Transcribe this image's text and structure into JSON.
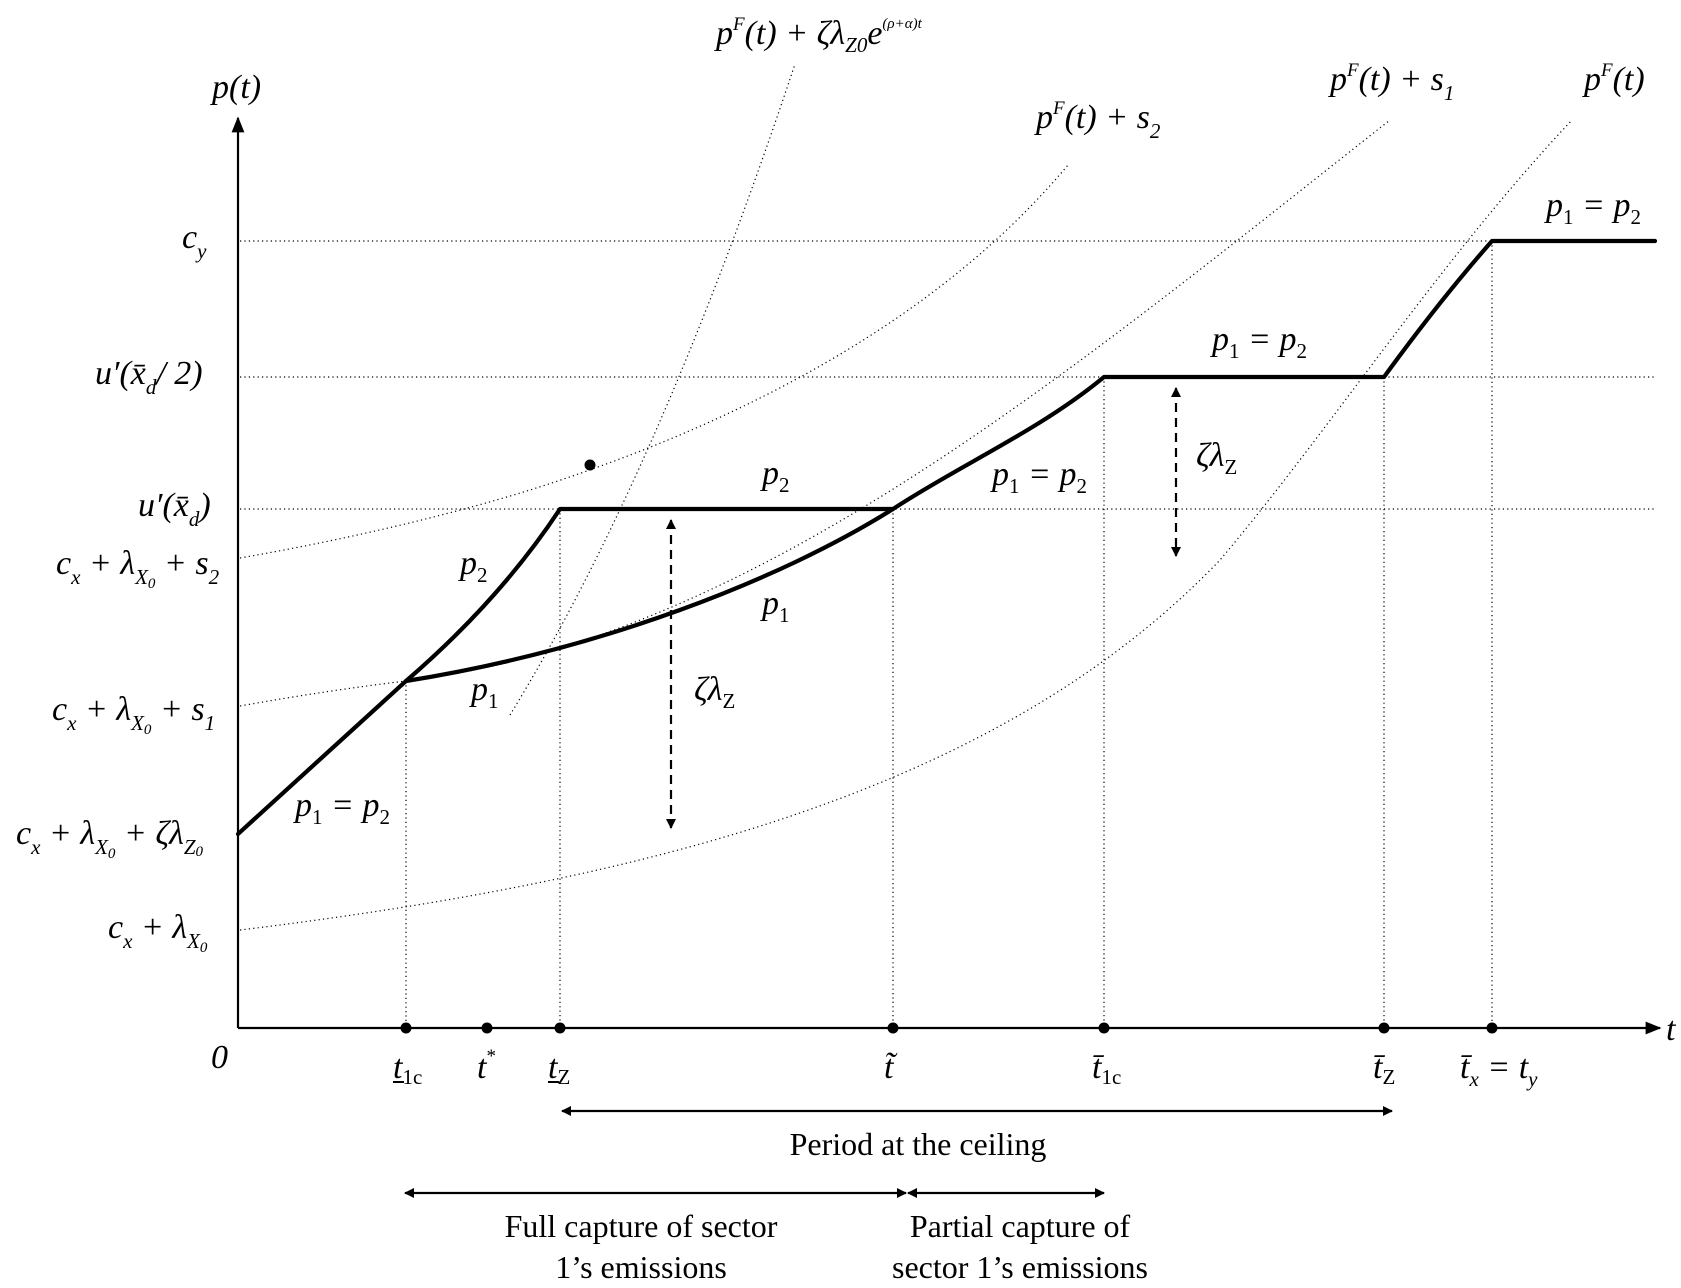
{
  "axes": {
    "y_label": "p(t)",
    "x_label": "t",
    "origin": "0"
  },
  "y_labels": {
    "cy": "c",
    "cy_sub": "y",
    "u_half": "u′(x̄",
    "u_half_sub": "d",
    "u_half_end": "/ 2)",
    "u_full": "u′(x̄",
    "u_full_sub": "d",
    "u_full_end": ")",
    "s2_line": "c",
    "s2_line_sub": "x",
    "s2_line_b": " + λ",
    "s2_line_bsub": "X",
    "s2_line_bsub2": "0",
    "s2_line_c": " + s",
    "s2_line_csub": "2",
    "s1_line": "c",
    "s1_line_sub": "x",
    "s1_line_b": " + λ",
    "s1_line_bsub": "X",
    "s1_line_bsub2": "0",
    "s1_line_c": " + s",
    "s1_line_csub": "1",
    "z_line": "c",
    "z_line_sub": "x",
    "z_line_b": " + λ",
    "z_line_bsub": "X",
    "z_line_bsub2": "0",
    "z_line_c": " + ζλ",
    "z_line_csub": "Z",
    "z_line_csub2": "0",
    "f_line": "c",
    "f_line_sub": "x",
    "f_line_b": " + λ",
    "f_line_bsub": "X",
    "f_line_bsub2": "0"
  },
  "curve_labels": {
    "pF_zeta": "p",
    "pF_zeta_sup": "F",
    "pF_zeta_mid": "(t) + ζλ",
    "pF_zeta_sub": "Z0",
    "pF_zeta_e": "e",
    "pF_zeta_exp": "(ρ+α)t",
    "pF_s2": "p",
    "pF_s2_sup": "F",
    "pF_s2_mid": "(t) + s",
    "pF_s2_sub": "2",
    "pF_s1": "p",
    "pF_s1_sup": "F",
    "pF_s1_mid": "(t) + s",
    "pF_s1_sub": "1",
    "pF": "p",
    "pF_sup": "F",
    "pF_mid": "(t)"
  },
  "path_labels": {
    "p": "p",
    "eq": " = p",
    "one": "1",
    "two": "2",
    "zeta": "ζλ",
    "z": "Z"
  },
  "x_ticks": {
    "t1c_low": "t",
    "t1c_low_sub": "1c",
    "t_star": "t",
    "t_star_sup": "*",
    "tZ_low": "t",
    "tZ_low_sub": "Z",
    "t_tilde": "t̃",
    "t1c_bar": "t̄",
    "t1c_bar_sub": "1c",
    "tZ_bar": "t̄",
    "tZ_bar_sub": "Z",
    "tx_bar": "t̄",
    "tx_bar_sub": "x",
    "tx_eq": " = t",
    "tx_eq_sub": "y"
  },
  "periods": {
    "ceiling": "Period at the ceiling",
    "full_1": "Full capture of sector",
    "full_2": "1’s emissions",
    "partial_1": "Partial capture of",
    "partial_2": "sector 1’s emissions"
  }
}
